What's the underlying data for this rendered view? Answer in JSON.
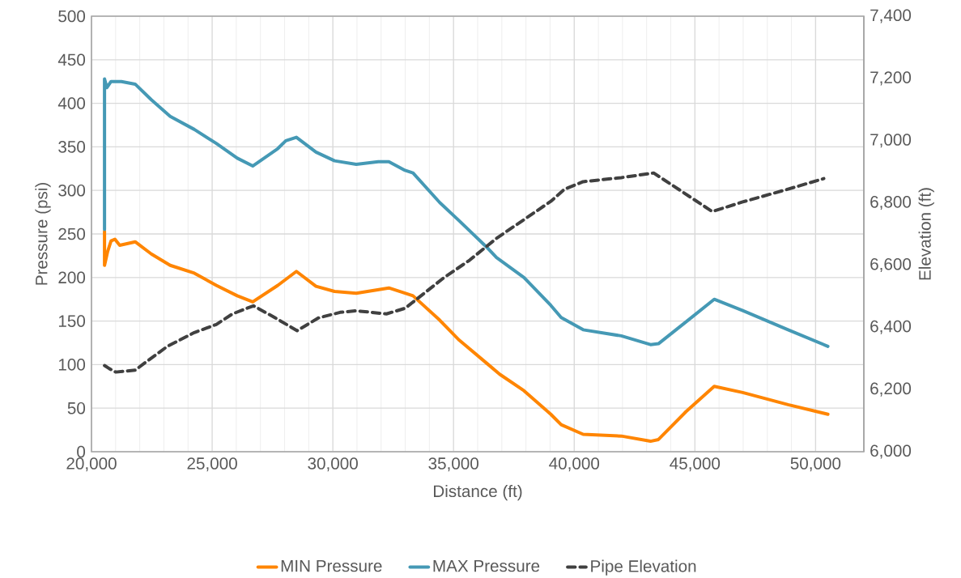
{
  "chart_data": {
    "type": "line",
    "xlabel": "Distance (ft)",
    "ylabel": "Pressure (psi)",
    "y2label": "Elevation (ft)",
    "xlim": [
      20000,
      52000
    ],
    "ylim": [
      0,
      500
    ],
    "y2lim": [
      6000,
      7400
    ],
    "xticks": [
      {
        "value": 20000,
        "label": "20,000"
      },
      {
        "value": 25000,
        "label": "25,000"
      },
      {
        "value": 30000,
        "label": "30,000"
      },
      {
        "value": 35000,
        "label": "35,000"
      },
      {
        "value": 40000,
        "label": "40,000"
      },
      {
        "value": 45000,
        "label": "45,000"
      },
      {
        "value": 50000,
        "label": "50,000"
      }
    ],
    "yticks": [
      0,
      50,
      100,
      150,
      200,
      250,
      300,
      350,
      400,
      450,
      500
    ],
    "y2ticks": [
      {
        "value": 6000,
        "label": "6,000"
      },
      {
        "value": 6200,
        "label": "6,200"
      },
      {
        "value": 6400,
        "label": "6,400"
      },
      {
        "value": 6600,
        "label": "6,600"
      },
      {
        "value": 6800,
        "label": "6,800"
      },
      {
        "value": 7000,
        "label": "7,000"
      },
      {
        "value": 7200,
        "label": "7,200"
      },
      {
        "value": 7400,
        "label": "7,400"
      }
    ],
    "grid": true,
    "legend": "bottom",
    "series": [
      {
        "name": "MIN Pressure",
        "color": "#ff8500",
        "line_style": "solid",
        "x": [
          20540,
          20540,
          20670,
          20810,
          20970,
          21170,
          21810,
          22480,
          23260,
          24260,
          25170,
          26040,
          26680,
          27720,
          28490,
          29300,
          30070,
          30970,
          32320,
          32990,
          33320,
          34430,
          35240,
          36440,
          36910,
          37920,
          39030,
          39460,
          40370,
          41950,
          43160,
          43490,
          44630,
          45800,
          46980,
          48860,
          50510
        ],
        "values": [
          253,
          214,
          230,
          242,
          244,
          237,
          241,
          227,
          214,
          205,
          191,
          179,
          172,
          191,
          207,
          190,
          184,
          182,
          188,
          182,
          179,
          151,
          128,
          100,
          89,
          70,
          43,
          31,
          20,
          18,
          12,
          14,
          46,
          75,
          68,
          54,
          43
        ]
      },
      {
        "name": "MAX Pressure",
        "color": "#4599b5",
        "line_style": "solid",
        "x": [
          20540,
          20540,
          20640,
          20810,
          21240,
          21810,
          22480,
          23260,
          24260,
          25170,
          26040,
          26680,
          27720,
          28050,
          28490,
          29300,
          30070,
          30970,
          31880,
          32320,
          32990,
          33320,
          34430,
          35240,
          36440,
          36780,
          37920,
          39030,
          39460,
          40370,
          41950,
          43160,
          43490,
          44630,
          45800,
          46980,
          48860,
          50510
        ],
        "values": [
          255,
          428,
          418,
          425,
          425,
          422,
          404,
          385,
          370,
          354,
          337,
          328,
          348,
          357,
          361,
          344,
          334,
          330,
          333,
          333,
          323,
          320,
          286,
          265,
          233,
          223,
          200,
          168,
          154,
          140,
          133,
          123,
          124,
          149,
          175,
          162,
          140,
          121
        ]
      },
      {
        "name": "Pipe Elevation",
        "color": "#404040",
        "line_style": "dashed",
        "axis": "y2",
        "x": [
          20540,
          20740,
          21010,
          21810,
          22250,
          23150,
          24260,
          25170,
          25840,
          26710,
          27620,
          28520,
          29400,
          30300,
          30970,
          32220,
          32990,
          33420,
          34560,
          35670,
          36780,
          37920,
          39030,
          39600,
          40370,
          41950,
          43290,
          44060,
          45720,
          46980,
          48860,
          50340
        ],
        "values": [
          6277,
          6267,
          6256,
          6262,
          6288,
          6339,
          6383,
          6409,
          6443,
          6469,
          6430,
          6389,
          6430,
          6448,
          6453,
          6443,
          6461,
          6487,
          6557,
          6616,
          6686,
          6746,
          6805,
          6844,
          6868,
          6881,
          6896,
          6857,
          6772,
          6803,
          6844,
          6878
        ]
      }
    ]
  }
}
